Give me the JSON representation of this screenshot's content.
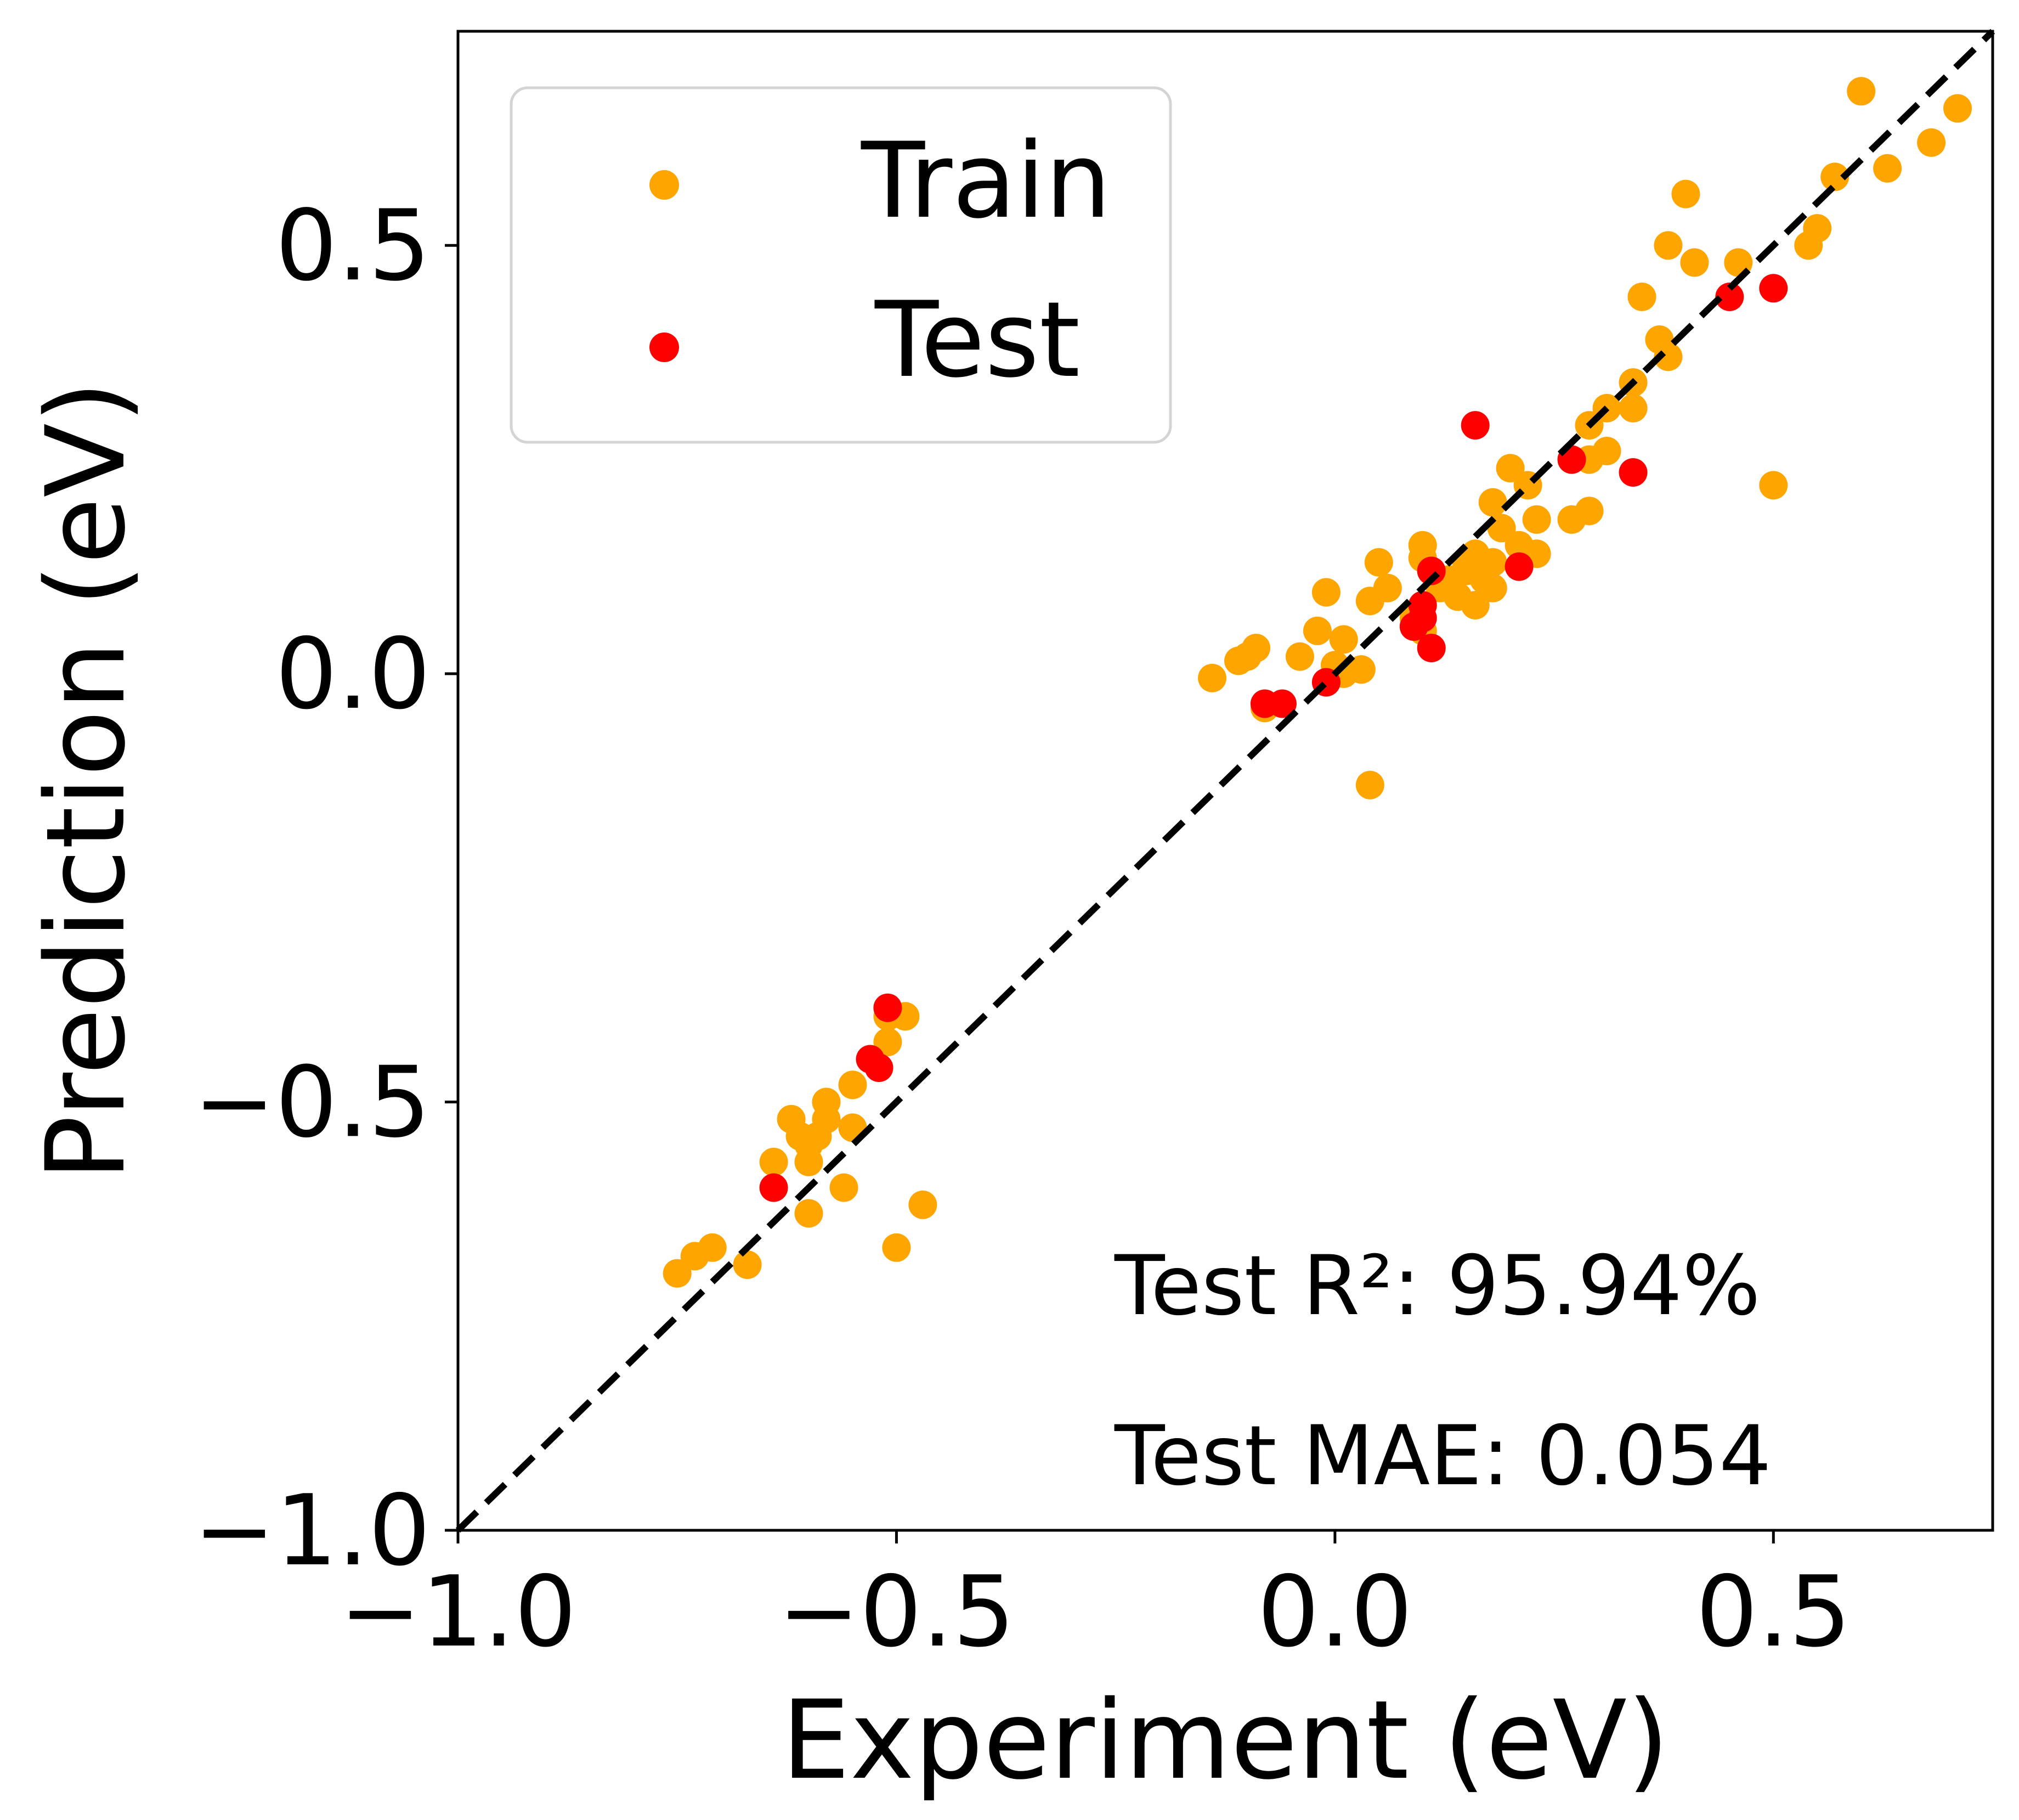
{
  "chart_data": {
    "type": "scatter",
    "xlabel": "Experiment (eV)",
    "ylabel": "Prediction (eV)",
    "xlim": [
      -1.0,
      0.75
    ],
    "ylim": [
      -1.0,
      0.75
    ],
    "xticks": [
      -1.0,
      -0.5,
      0.0,
      0.5
    ],
    "yticks": [
      -1.0,
      -0.5,
      0.0,
      0.5
    ],
    "xtick_labels": [
      "−1.0",
      "−0.5",
      "0.0",
      "0.5"
    ],
    "ytick_labels": [
      "−1.0",
      "−0.5",
      "0.0",
      "0.5"
    ],
    "grid": false,
    "legend_position": "top-left",
    "reference_line": {
      "style": "dashed",
      "color": "#000000",
      "from": [
        -1.0,
        -1.0
      ],
      "to": [
        0.75,
        0.75
      ]
    },
    "annotations": [
      "Test R²: 95.94%",
      "Test MAE: 0.054"
    ],
    "series": [
      {
        "name": "Train",
        "color": "#FFA500",
        "points": [
          [
            -0.75,
            -0.7
          ],
          [
            -0.73,
            -0.68
          ],
          [
            -0.71,
            -0.67
          ],
          [
            -0.67,
            -0.69
          ],
          [
            -0.64,
            -0.57
          ],
          [
            -0.62,
            -0.52
          ],
          [
            -0.61,
            -0.54
          ],
          [
            -0.6,
            -0.55
          ],
          [
            -0.6,
            -0.57
          ],
          [
            -0.6,
            -0.63
          ],
          [
            -0.59,
            -0.54
          ],
          [
            -0.58,
            -0.52
          ],
          [
            -0.58,
            -0.5
          ],
          [
            -0.56,
            -0.6
          ],
          [
            -0.55,
            -0.53
          ],
          [
            -0.55,
            -0.48
          ],
          [
            -0.51,
            -0.43
          ],
          [
            -0.51,
            -0.4
          ],
          [
            -0.5,
            -0.67
          ],
          [
            -0.49,
            -0.4
          ],
          [
            -0.47,
            -0.62
          ],
          [
            -0.14,
            -0.005
          ],
          [
            -0.11,
            0.015
          ],
          [
            -0.1,
            0.02
          ],
          [
            -0.09,
            0.03
          ],
          [
            -0.08,
            -0.04
          ],
          [
            -0.04,
            0.02
          ],
          [
            -0.02,
            0.05
          ],
          [
            -0.01,
            0.095
          ],
          [
            0.0,
            0.01
          ],
          [
            0.01,
            0.04
          ],
          [
            0.01,
            0.0
          ],
          [
            0.03,
            0.005
          ],
          [
            0.04,
            -0.13
          ],
          [
            0.04,
            0.085
          ],
          [
            0.05,
            0.13
          ],
          [
            0.06,
            0.1
          ],
          [
            0.09,
            0.065
          ],
          [
            0.1,
            0.05
          ],
          [
            0.1,
            0.135
          ],
          [
            0.1,
            0.15
          ],
          [
            0.11,
            0.12
          ],
          [
            0.12,
            0.1
          ],
          [
            0.13,
            0.11
          ],
          [
            0.14,
            0.09
          ],
          [
            0.15,
            0.13
          ],
          [
            0.15,
            0.12
          ],
          [
            0.16,
            0.08
          ],
          [
            0.16,
            0.14
          ],
          [
            0.17,
            0.11
          ],
          [
            0.18,
            0.13
          ],
          [
            0.18,
            0.1
          ],
          [
            0.18,
            0.2
          ],
          [
            0.19,
            0.17
          ],
          [
            0.2,
            0.24
          ],
          [
            0.21,
            0.15
          ],
          [
            0.22,
            0.22
          ],
          [
            0.23,
            0.18
          ],
          [
            0.23,
            0.14
          ],
          [
            0.27,
            0.18
          ],
          [
            0.29,
            0.19
          ],
          [
            0.29,
            0.25
          ],
          [
            0.29,
            0.29
          ],
          [
            0.31,
            0.26
          ],
          [
            0.31,
            0.31
          ],
          [
            0.34,
            0.34
          ],
          [
            0.34,
            0.31
          ],
          [
            0.35,
            0.44
          ],
          [
            0.37,
            0.39
          ],
          [
            0.38,
            0.37
          ],
          [
            0.38,
            0.5
          ],
          [
            0.4,
            0.56
          ],
          [
            0.41,
            0.48
          ],
          [
            0.46,
            0.48
          ],
          [
            0.5,
            0.22
          ],
          [
            0.54,
            0.5
          ],
          [
            0.55,
            0.52
          ],
          [
            0.57,
            0.58
          ],
          [
            0.6,
            0.68
          ],
          [
            0.63,
            0.59
          ],
          [
            0.68,
            0.62
          ],
          [
            0.71,
            0.66
          ]
        ]
      },
      {
        "name": "Test",
        "color": "#FF0000",
        "points": [
          [
            -0.64,
            -0.6
          ],
          [
            -0.53,
            -0.45
          ],
          [
            -0.52,
            -0.46
          ],
          [
            -0.51,
            -0.39
          ],
          [
            -0.08,
            -0.035
          ],
          [
            -0.06,
            -0.035
          ],
          [
            -0.01,
            -0.01
          ],
          [
            0.09,
            0.055
          ],
          [
            0.1,
            0.065
          ],
          [
            0.1,
            0.08
          ],
          [
            0.11,
            0.03
          ],
          [
            0.11,
            0.12
          ],
          [
            0.16,
            0.29
          ],
          [
            0.21,
            0.125
          ],
          [
            0.27,
            0.25
          ],
          [
            0.34,
            0.235
          ],
          [
            0.45,
            0.44
          ],
          [
            0.5,
            0.45
          ]
        ]
      }
    ]
  }
}
